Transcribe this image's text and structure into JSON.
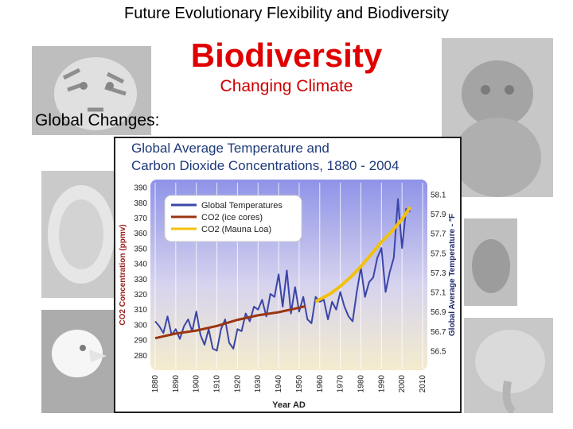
{
  "slide": {
    "header": "Future Evolutionary Flexibility and Biodiversity",
    "title": "Biodiversity",
    "subtitle": "Changing Climate",
    "section_label": "Global Changes:"
  },
  "colors": {
    "title_red": "#e00000",
    "temp_line": "#3a45a8",
    "co2_ice": "#9a3510",
    "co2_mauna": "#f2c10e",
    "chart_title": "#1f3a7a"
  },
  "chart_data": {
    "type": "line",
    "title": "Global Average Temperature and Carbon Dioxide Concentrations, 1880 - 2004",
    "title_line1": "Global Average Temperature and",
    "title_line2": "Carbon Dioxide Concentrations, 1880 - 2004",
    "xlabel": "Year AD",
    "ylabel_left": "CO2 Concentration (ppmv)",
    "ylabel_right": "Global Average Temperature - °F",
    "xlim": [
      1880,
      2010
    ],
    "ylim_left": [
      270,
      395
    ],
    "ylim_right": [
      56.3,
      58.25
    ],
    "x_ticks": [
      "1880",
      "1890",
      "1900",
      "1910",
      "1920",
      "1930",
      "1940",
      "1950",
      "1960",
      "1970",
      "1980",
      "1990",
      "2000",
      "2010"
    ],
    "y_ticks_left": [
      "390",
      "380",
      "370",
      "360",
      "350",
      "340",
      "330",
      "320",
      "310",
      "300",
      "290",
      "280"
    ],
    "y_ticks_right": [
      "58.1",
      "57.9",
      "57.7",
      "57.5",
      "57.3",
      "57.1",
      "56.9",
      "56.7",
      "56.5"
    ],
    "legend": {
      "position": "top-left",
      "entries": [
        "Global Temperatures",
        "CO2 (ice cores)",
        "CO2 (Mauna Loa)"
      ]
    },
    "series": [
      {
        "name": "Global Temperatures",
        "axis": "right",
        "points": [
          [
            1880,
            56.8
          ],
          [
            1882,
            56.75
          ],
          [
            1884,
            56.68
          ],
          [
            1886,
            56.85
          ],
          [
            1888,
            56.66
          ],
          [
            1890,
            56.72
          ],
          [
            1892,
            56.62
          ],
          [
            1894,
            56.75
          ],
          [
            1896,
            56.82
          ],
          [
            1898,
            56.7
          ],
          [
            1900,
            56.9
          ],
          [
            1902,
            56.66
          ],
          [
            1904,
            56.56
          ],
          [
            1906,
            56.72
          ],
          [
            1908,
            56.52
          ],
          [
            1910,
            56.5
          ],
          [
            1912,
            56.72
          ],
          [
            1914,
            56.82
          ],
          [
            1916,
            56.58
          ],
          [
            1918,
            56.52
          ],
          [
            1920,
            56.72
          ],
          [
            1922,
            56.7
          ],
          [
            1924,
            56.88
          ],
          [
            1926,
            56.8
          ],
          [
            1928,
            56.95
          ],
          [
            1930,
            56.92
          ],
          [
            1932,
            57.02
          ],
          [
            1934,
            56.85
          ],
          [
            1936,
            57.08
          ],
          [
            1938,
            57.05
          ],
          [
            1940,
            57.28
          ],
          [
            1942,
            56.95
          ],
          [
            1944,
            57.32
          ],
          [
            1946,
            56.88
          ],
          [
            1948,
            57.15
          ],
          [
            1950,
            56.9
          ],
          [
            1952,
            57.05
          ],
          [
            1954,
            56.82
          ],
          [
            1956,
            56.78
          ],
          [
            1958,
            57.05
          ],
          [
            1960,
            57.0
          ],
          [
            1962,
            57.02
          ],
          [
            1964,
            56.82
          ],
          [
            1966,
            57.0
          ],
          [
            1968,
            56.92
          ],
          [
            1970,
            57.1
          ],
          [
            1972,
            56.95
          ],
          [
            1974,
            56.85
          ],
          [
            1976,
            56.8
          ],
          [
            1978,
            57.1
          ],
          [
            1980,
            57.35
          ],
          [
            1982,
            57.05
          ],
          [
            1984,
            57.2
          ],
          [
            1986,
            57.25
          ],
          [
            1988,
            57.45
          ],
          [
            1990,
            57.55
          ],
          [
            1992,
            57.1
          ],
          [
            1994,
            57.3
          ],
          [
            1996,
            57.45
          ],
          [
            1998,
            58.05
          ],
          [
            2000,
            57.55
          ],
          [
            2002,
            57.95
          ],
          [
            2004,
            57.92
          ]
        ]
      },
      {
        "name": "CO2 (ice cores)",
        "axis": "left",
        "points": [
          [
            1880,
            291
          ],
          [
            1890,
            294
          ],
          [
            1900,
            296
          ],
          [
            1910,
            299
          ],
          [
            1920,
            303
          ],
          [
            1930,
            306
          ],
          [
            1940,
            308
          ],
          [
            1950,
            311
          ],
          [
            1953,
            312
          ]
        ]
      },
      {
        "name": "CO2 (Mauna Loa)",
        "axis": "left",
        "points": [
          [
            1958,
            315
          ],
          [
            1965,
            320
          ],
          [
            1970,
            325
          ],
          [
            1975,
            331
          ],
          [
            1980,
            338
          ],
          [
            1985,
            346
          ],
          [
            1990,
            354
          ],
          [
            1995,
            361
          ],
          [
            2000,
            369
          ],
          [
            2004,
            377
          ]
        ]
      }
    ]
  }
}
